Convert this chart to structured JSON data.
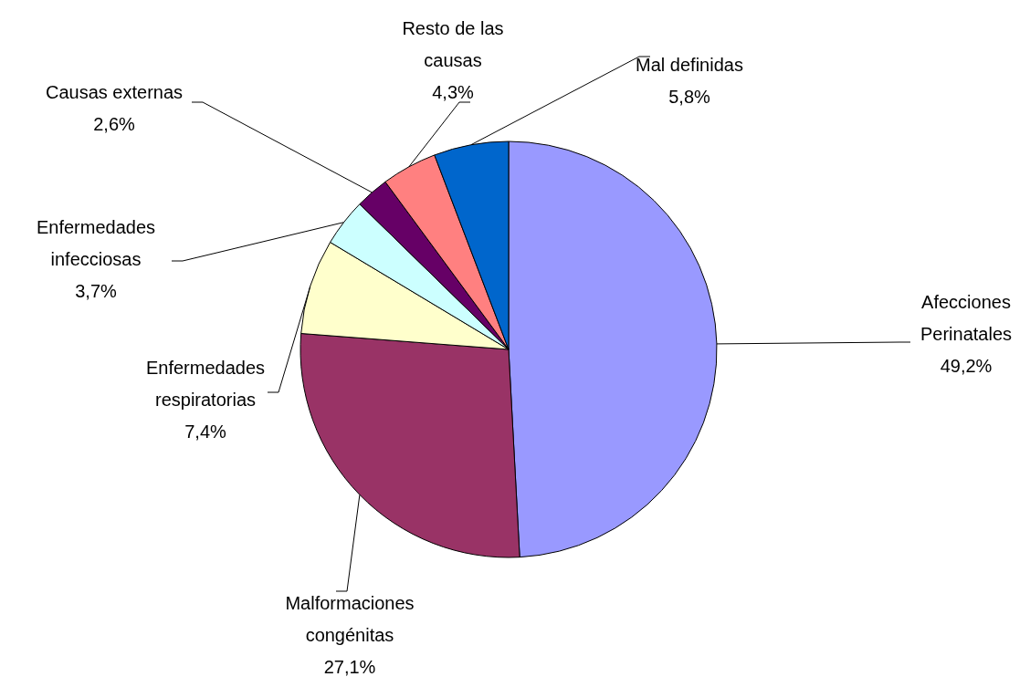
{
  "chart_data": {
    "type": "pie",
    "categories": [
      "Afecciones Perinatales",
      "Malformaciones congénitas",
      "Enfermedades respiratorias",
      "Enfermedades infecciosas",
      "Causas externas",
      "Resto de las causas",
      "Mal definidas"
    ],
    "values": [
      49.2,
      27.1,
      7.4,
      3.7,
      2.6,
      4.3,
      5.8
    ],
    "value_labels": [
      "49,2%",
      "27,1%",
      "7,4%",
      "3,7%",
      "2,6%",
      "4,3%",
      "5,8%"
    ],
    "colors": [
      "#9999ff",
      "#993366",
      "#ffffcc",
      "#ccffff",
      "#660066",
      "#ff8080",
      "#0066cc"
    ],
    "legend": false
  }
}
